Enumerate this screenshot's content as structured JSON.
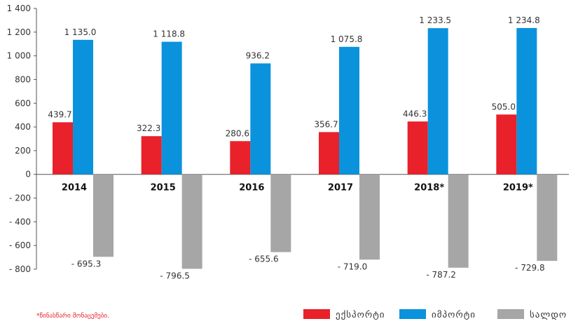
{
  "chart_data": {
    "type": "bar",
    "categories": [
      "2014",
      "2015",
      "2016",
      "2017",
      "2018*",
      "2019*"
    ],
    "series": [
      {
        "name": "ექსპორტი",
        "color": "#e8212b",
        "values": [
          439.7,
          322.3,
          280.6,
          356.7,
          446.3,
          505.0
        ],
        "labels": [
          "439.7",
          "322.3",
          "280.6",
          "356.7",
          "446.3",
          "505.0"
        ]
      },
      {
        "name": "იმპორტი",
        "color": "#0a93dc",
        "values": [
          1135.0,
          1118.8,
          936.2,
          1075.8,
          1233.5,
          1234.8
        ],
        "labels": [
          "1 135.0",
          "1 118.8",
          "936.2",
          "1 075.8",
          "1 233.5",
          "1 234.8"
        ]
      },
      {
        "name": "სალდო",
        "color": "#a6a6a6",
        "values": [
          -695.3,
          -796.5,
          -655.6,
          -719.0,
          -787.2,
          -729.8
        ],
        "labels": [
          "- 695.3",
          "- 796.5",
          "- 655.6",
          "- 719.0",
          "- 787.2",
          "- 729.8"
        ]
      }
    ],
    "yticks": [
      "1 400",
      "1 200",
      "1 000",
      "800",
      "600",
      "400",
      "200",
      "0",
      "- 200",
      "- 400",
      "- 600",
      "- 800"
    ],
    "ylim": [
      -800,
      1400
    ],
    "grid": false,
    "legend": "bottom-right"
  },
  "footnote": "*წინასწარი მონაცემები."
}
